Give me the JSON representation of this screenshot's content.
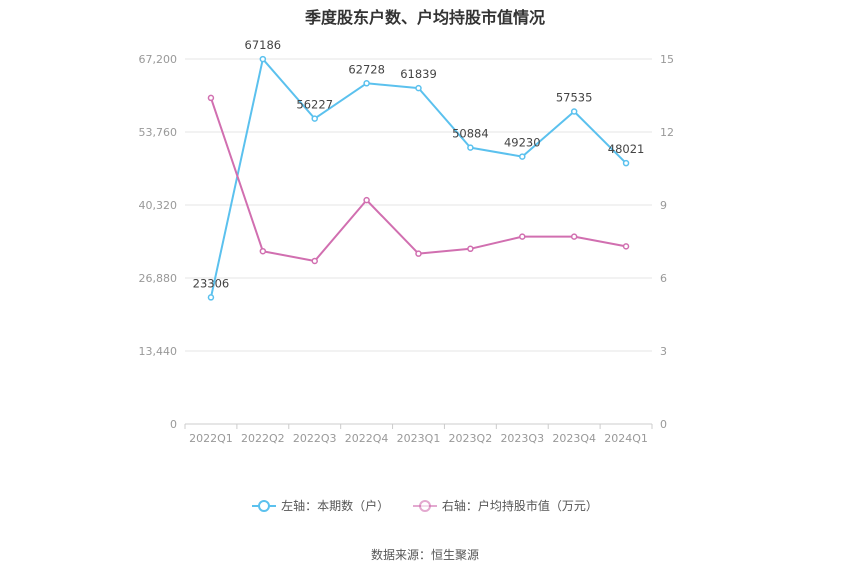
{
  "title": "季度股东户数、户均持股市值情况",
  "source": "数据来源：恒生聚源",
  "legend": {
    "left": "左轴：本期数（户）",
    "right": "右轴：户均持股市值（万元）"
  },
  "colors": {
    "left_series": "#5bc1ee",
    "right_series": "#d16fb0",
    "grid": "#e6e6e6",
    "axis_text": "#999999"
  },
  "chart_data": {
    "type": "line",
    "title": "季度股东户数、户均持股市值情况",
    "categories": [
      "2022Q1",
      "2022Q2",
      "2022Q3",
      "2022Q4",
      "2023Q1",
      "2023Q2",
      "2023Q3",
      "2023Q4",
      "2024Q1"
    ],
    "left_axis": {
      "ylim": [
        0,
        67200
      ],
      "ticks": [
        0,
        13440,
        26880,
        40320,
        53760,
        67200
      ],
      "tick_labels": [
        "0",
        "13,440",
        "26,880",
        "40,320",
        "53,760",
        "67,200"
      ]
    },
    "right_axis": {
      "ylim": [
        0,
        15
      ],
      "ticks": [
        0,
        3,
        6,
        9,
        12,
        15
      ],
      "tick_labels": [
        "0",
        "3",
        "6",
        "9",
        "12",
        "15"
      ]
    },
    "series": [
      {
        "name": "左轴：本期数（户）",
        "axis": "left",
        "values": [
          23306,
          67186,
          56227,
          62728,
          61839,
          50884,
          49230,
          57535,
          48021
        ],
        "labels": [
          "23306",
          "67186",
          "56227",
          "62728",
          "61839",
          "50884",
          "49230",
          "57535",
          "48021"
        ]
      },
      {
        "name": "右轴：户均持股市值（万元）",
        "axis": "right",
        "values": [
          13.4,
          7.1,
          6.7,
          9.2,
          7.0,
          7.2,
          7.7,
          7.7,
          7.3
        ]
      }
    ],
    "grid": true,
    "legend_position": "bottom"
  }
}
